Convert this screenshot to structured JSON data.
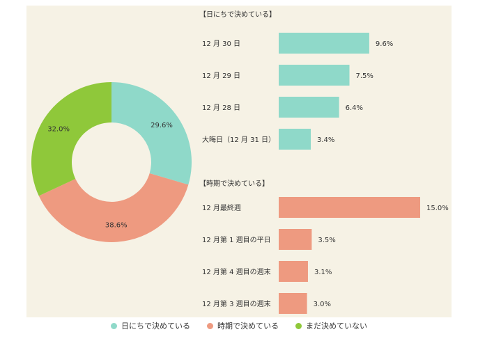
{
  "colors": {
    "teal": "#8fd9c9",
    "salmon": "#ee9a80",
    "green": "#8fc83a"
  },
  "chart_data": [
    {
      "type": "pie",
      "donut": true,
      "slices": [
        {
          "label": "日にちで決めている",
          "value": 29.6,
          "display": "29.6%",
          "color": "#8fd9c9"
        },
        {
          "label": "時期で決めている",
          "value": 38.6,
          "display": "38.6%",
          "color": "#ee9a80"
        },
        {
          "label": "まだ決めていない",
          "value": 32.0,
          "display": "32.0%",
          "color": "#8fc83a"
        }
      ]
    },
    {
      "type": "bar",
      "orientation": "horizontal",
      "groups": [
        {
          "title": "【日にちで決めている】",
          "color": "#8fd9c9",
          "categories": [
            "12 月 30 日",
            "12 月 29 日",
            "12 月 28 日",
            "大晦日（12 月 31 日）"
          ],
          "values": [
            9.6,
            7.5,
            6.4,
            3.4
          ],
          "labels": [
            "9.6%",
            "7.5%",
            "6.4%",
            "3.4%"
          ]
        },
        {
          "title": "【時期で決めている】",
          "color": "#ee9a80",
          "categories": [
            "12 月最終週",
            "12 月第 1 週目の平日",
            "12 月第 4 週目の週末",
            "12 月第 3 週目の週末"
          ],
          "values": [
            15.0,
            3.5,
            3.1,
            3.0
          ],
          "labels": [
            "15.0%",
            "3.5%",
            "3.1%",
            "3.0%"
          ]
        }
      ],
      "xlim": [
        0,
        15.0
      ]
    }
  ],
  "legend": [
    {
      "label": "日にちで決めている",
      "color": "#8fd9c9"
    },
    {
      "label": "時期で決めている",
      "color": "#ee9a80"
    },
    {
      "label": "まだ決めていない",
      "color": "#8fc83a"
    }
  ]
}
